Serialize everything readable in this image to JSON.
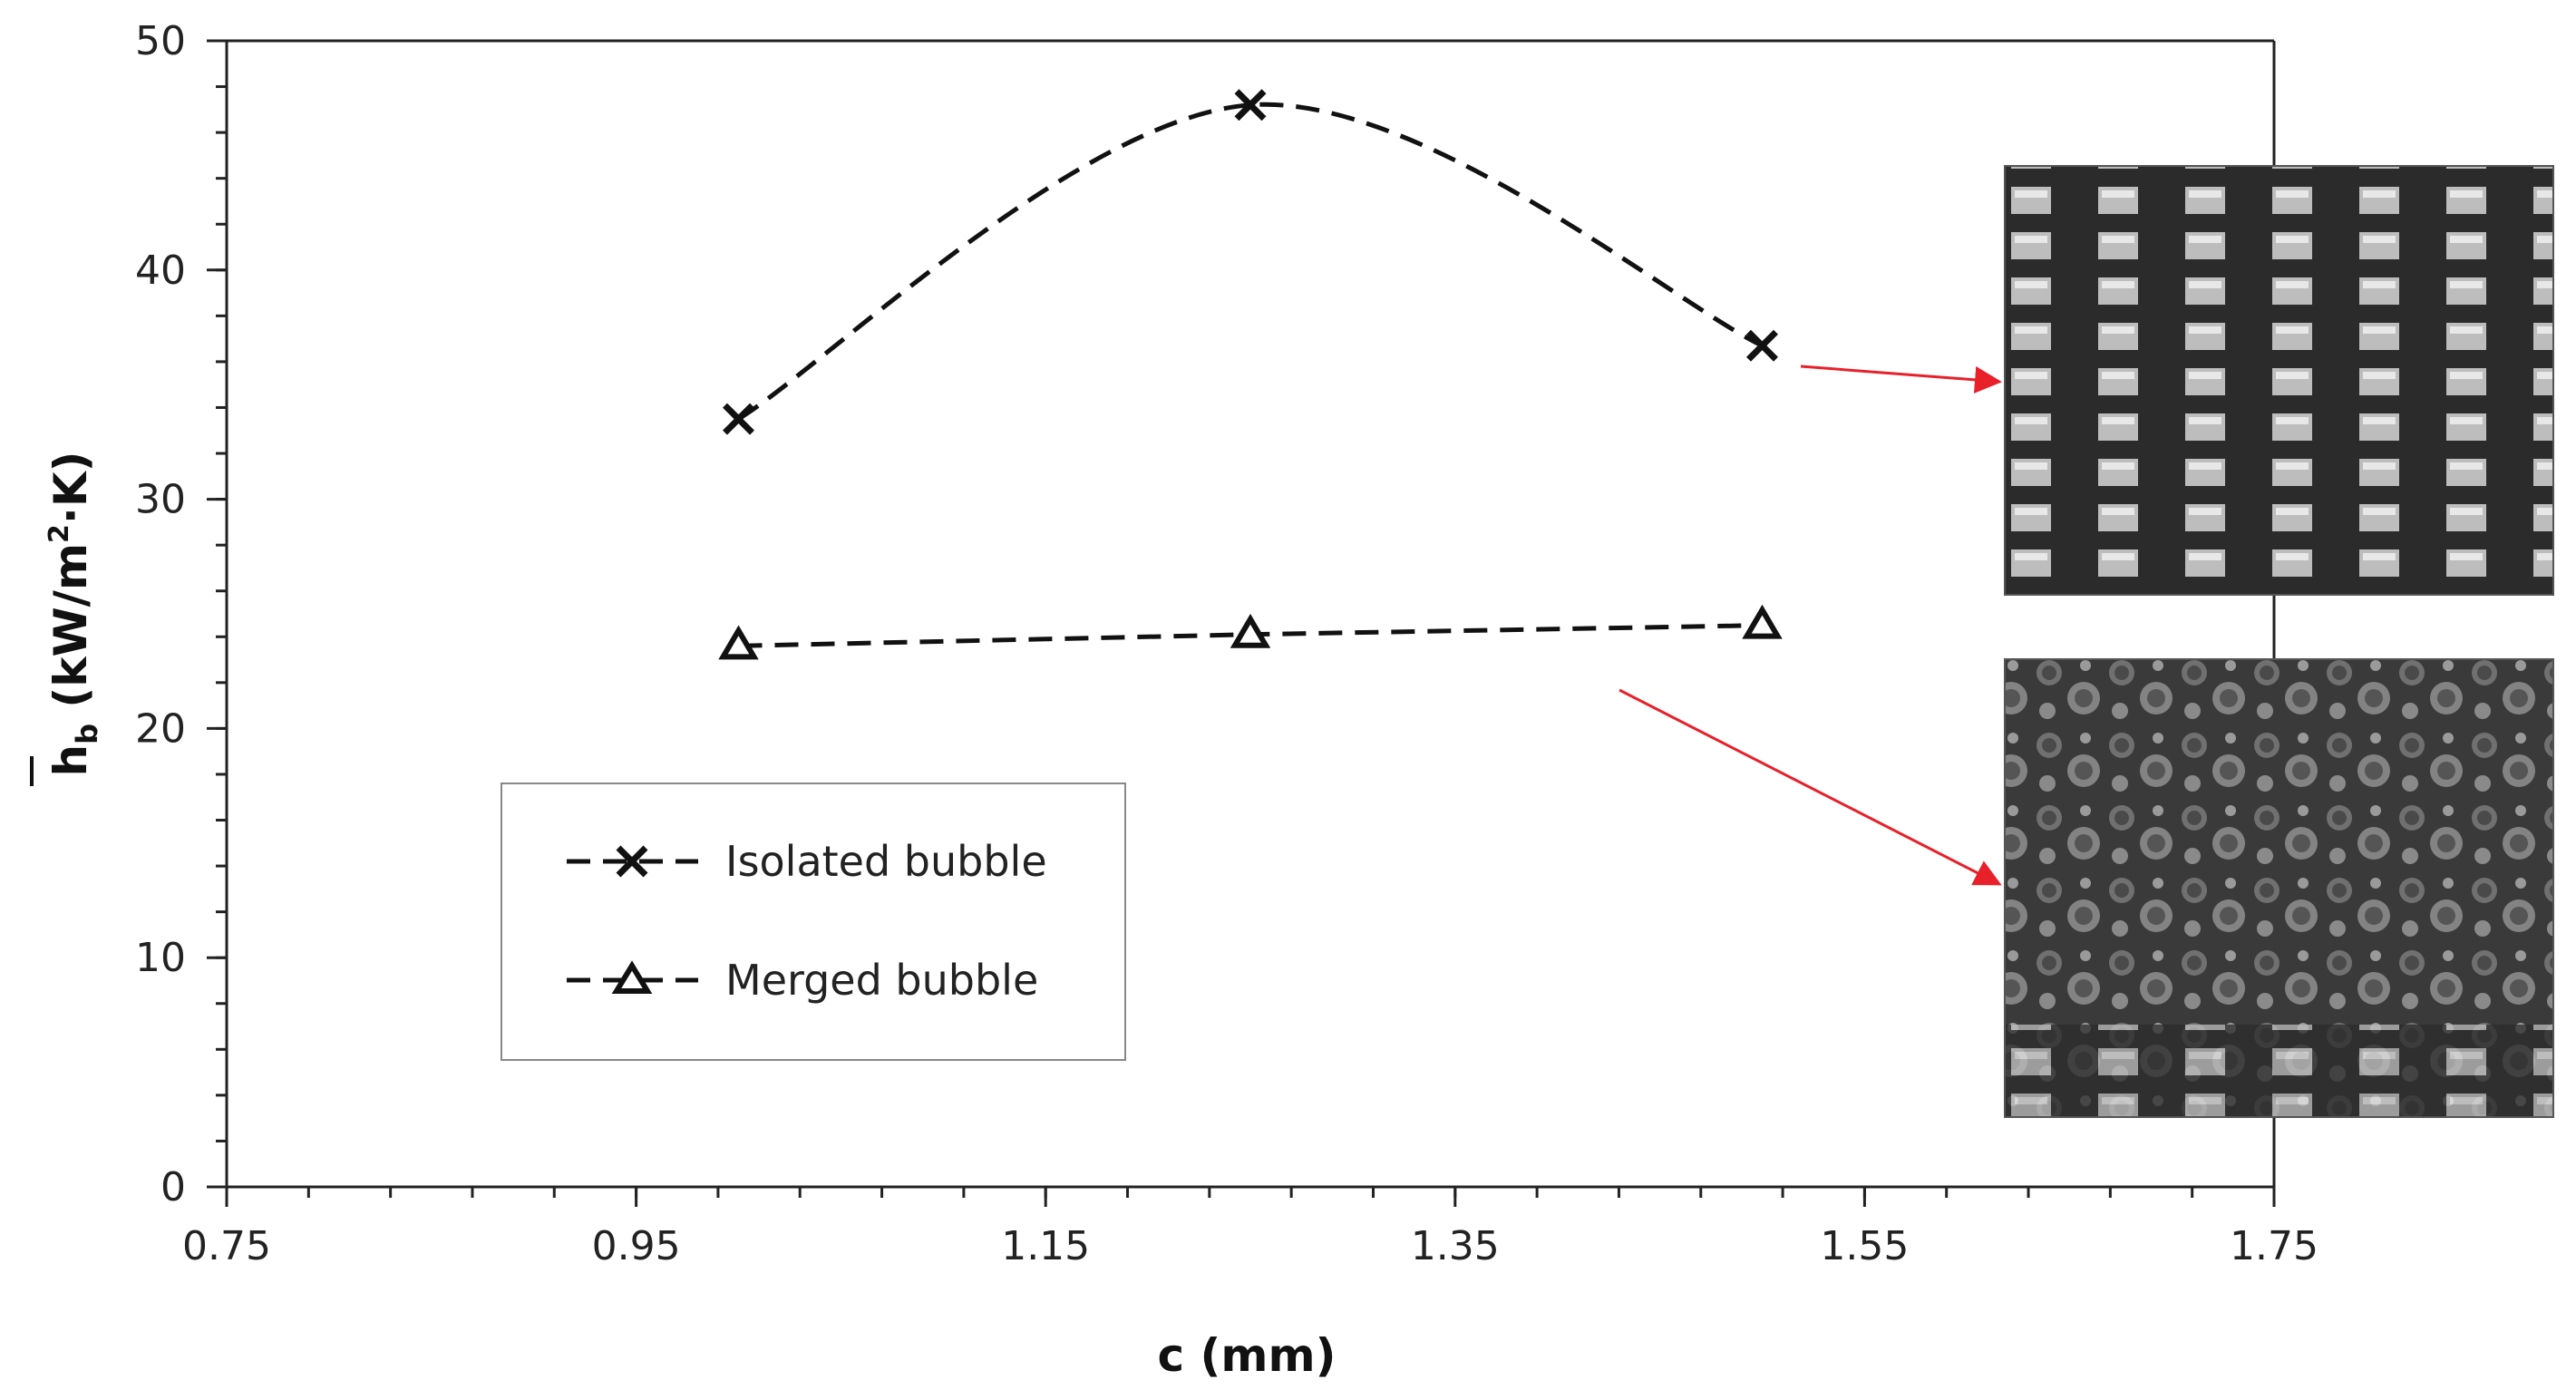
{
  "chart_data": {
    "type": "line",
    "title": "",
    "xlabel": "c (mm)",
    "ylabel": {
      "symbol": "h",
      "subscript": "b",
      "units_open": " (kW/m",
      "superscript": "2",
      "units_close": "·K)"
    },
    "xlim": [
      0.75,
      1.75
    ],
    "ylim": [
      0,
      50
    ],
    "x_ticks": [
      0.75,
      0.95,
      1.15,
      1.35,
      1.55,
      1.75
    ],
    "x_tick_labels": [
      "0.75",
      "0.95",
      "1.15",
      "1.35",
      "1.55",
      "1.75"
    ],
    "y_ticks": [
      0,
      10,
      20,
      30,
      40,
      50
    ],
    "y_tick_labels": [
      "0",
      "10",
      "20",
      "30",
      "40",
      "50"
    ],
    "grid": false,
    "legend_position": "lower-left",
    "series": [
      {
        "name": "Isolated bubble",
        "marker": "x",
        "line_style": "dashed-smooth",
        "x": [
          1.0,
          1.25,
          1.5
        ],
        "values": [
          33.5,
          47.2,
          36.7
        ]
      },
      {
        "name": "Merged bubble",
        "marker": "triangle",
        "line_style": "dashed",
        "x": [
          1.0,
          1.25,
          1.5
        ],
        "values": [
          23.6,
          24.1,
          24.5
        ]
      }
    ],
    "annotations": [
      {
        "type": "arrow",
        "color": "#e8202a",
        "from_series": "Isolated bubble",
        "to": "top-photo"
      },
      {
        "type": "arrow",
        "color": "#e8202a",
        "from_series": "Merged bubble",
        "to": "bottom-photo"
      }
    ],
    "insets": [
      {
        "name": "top-photo",
        "depicts": "isolated bubbles on finned surface"
      },
      {
        "name": "bottom-photo",
        "depicts": "merged bubbles on finned surface"
      }
    ]
  }
}
